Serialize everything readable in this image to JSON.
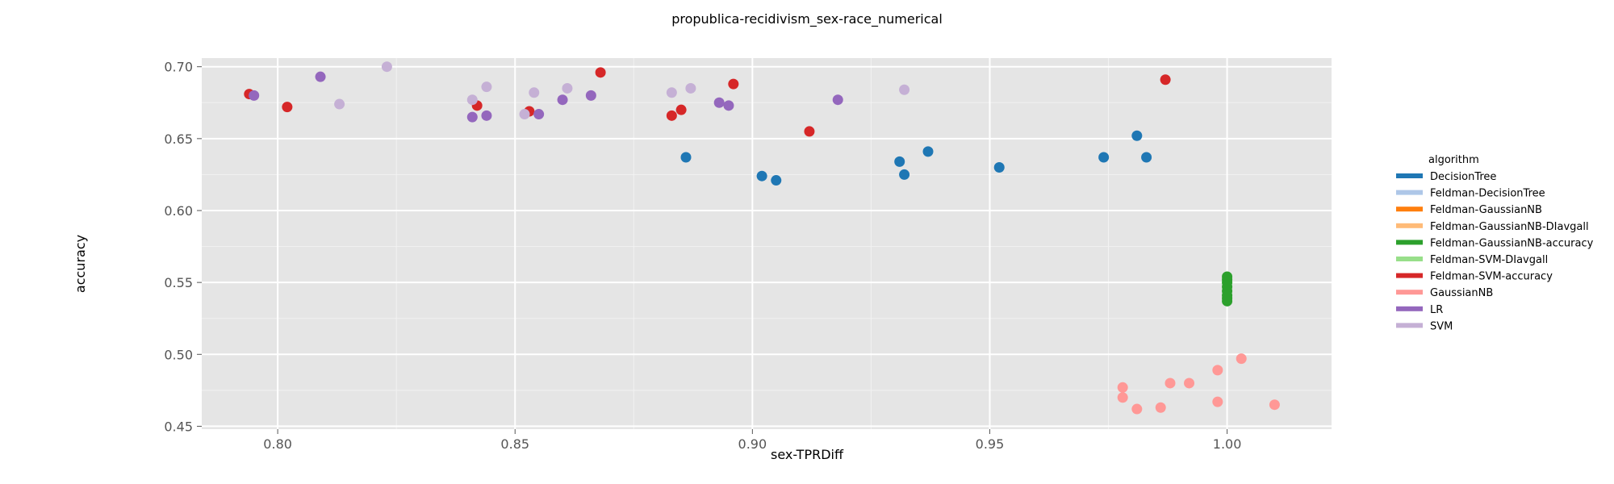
{
  "chart_data": {
    "type": "scatter",
    "title": "propublica-recidivism_sex-race_numerical",
    "xlabel": "sex-TPRDiff",
    "ylabel": "accuracy",
    "xlim": [
      0.784,
      1.022
    ],
    "ylim": [
      0.448,
      0.706
    ],
    "xticks": [
      0.8,
      0.85,
      0.9,
      0.95,
      1.0
    ],
    "xtick_labels": [
      "0.80",
      "0.85",
      "0.90",
      "0.95",
      "1.00"
    ],
    "yticks": [
      0.45,
      0.5,
      0.55,
      0.6,
      0.65,
      0.7
    ],
    "ytick_labels": [
      "0.45",
      "0.50",
      "0.55",
      "0.60",
      "0.65",
      "0.70"
    ],
    "grid": true,
    "legend": {
      "title": "algorithm",
      "placement": "right"
    },
    "series": [
      {
        "name": "DecisionTree",
        "color": "#1f77b4",
        "points": [
          [
            0.886,
            0.637
          ],
          [
            0.902,
            0.624
          ],
          [
            0.905,
            0.621
          ],
          [
            0.931,
            0.634
          ],
          [
            0.932,
            0.625
          ],
          [
            0.937,
            0.641
          ],
          [
            0.952,
            0.63
          ],
          [
            0.974,
            0.637
          ],
          [
            0.981,
            0.652
          ],
          [
            0.983,
            0.637
          ]
        ]
      },
      {
        "name": "Feldman-DecisionTree",
        "color": "#aec7e8",
        "points": []
      },
      {
        "name": "Feldman-GaussianNB",
        "color": "#ff7f0e",
        "points": []
      },
      {
        "name": "Feldman-GaussianNB-DIavgall",
        "color": "#ffbb78",
        "points": []
      },
      {
        "name": "Feldman-GaussianNB-accuracy",
        "color": "#2ca02c",
        "points": [
          [
            1.0,
            0.554
          ],
          [
            1.0,
            0.552
          ],
          [
            1.0,
            0.55
          ],
          [
            1.0,
            0.547
          ],
          [
            1.0,
            0.544
          ],
          [
            1.0,
            0.541
          ],
          [
            1.0,
            0.539
          ],
          [
            1.0,
            0.537
          ]
        ]
      },
      {
        "name": "Feldman-SVM-DIavgall",
        "color": "#98df8a",
        "points": []
      },
      {
        "name": "Feldman-SVM-accuracy",
        "color": "#d62728",
        "points": [
          [
            0.794,
            0.681
          ],
          [
            0.802,
            0.672
          ],
          [
            0.842,
            0.673
          ],
          [
            0.853,
            0.669
          ],
          [
            0.868,
            0.696
          ],
          [
            0.883,
            0.666
          ],
          [
            0.885,
            0.67
          ],
          [
            0.896,
            0.688
          ],
          [
            0.912,
            0.655
          ],
          [
            0.987,
            0.691
          ]
        ]
      },
      {
        "name": "GaussianNB",
        "color": "#ff9896",
        "points": [
          [
            0.978,
            0.477
          ],
          [
            0.978,
            0.47
          ],
          [
            0.981,
            0.462
          ],
          [
            0.988,
            0.48
          ],
          [
            0.986,
            0.463
          ],
          [
            0.992,
            0.48
          ],
          [
            0.998,
            0.489
          ],
          [
            0.998,
            0.467
          ],
          [
            1.003,
            0.497
          ],
          [
            1.01,
            0.465
          ]
        ]
      },
      {
        "name": "LR",
        "color": "#9467bd",
        "points": [
          [
            0.795,
            0.68
          ],
          [
            0.809,
            0.693
          ],
          [
            0.841,
            0.665
          ],
          [
            0.844,
            0.666
          ],
          [
            0.855,
            0.667
          ],
          [
            0.86,
            0.677
          ],
          [
            0.866,
            0.68
          ],
          [
            0.893,
            0.675
          ],
          [
            0.895,
            0.673
          ],
          [
            0.918,
            0.677
          ]
        ]
      },
      {
        "name": "SVM",
        "color": "#c5b0d5",
        "points": [
          [
            0.813,
            0.674
          ],
          [
            0.823,
            0.7
          ],
          [
            0.841,
            0.677
          ],
          [
            0.844,
            0.686
          ],
          [
            0.852,
            0.667
          ],
          [
            0.854,
            0.682
          ],
          [
            0.861,
            0.685
          ],
          [
            0.883,
            0.682
          ],
          [
            0.887,
            0.685
          ],
          [
            0.932,
            0.684
          ]
        ]
      }
    ]
  }
}
